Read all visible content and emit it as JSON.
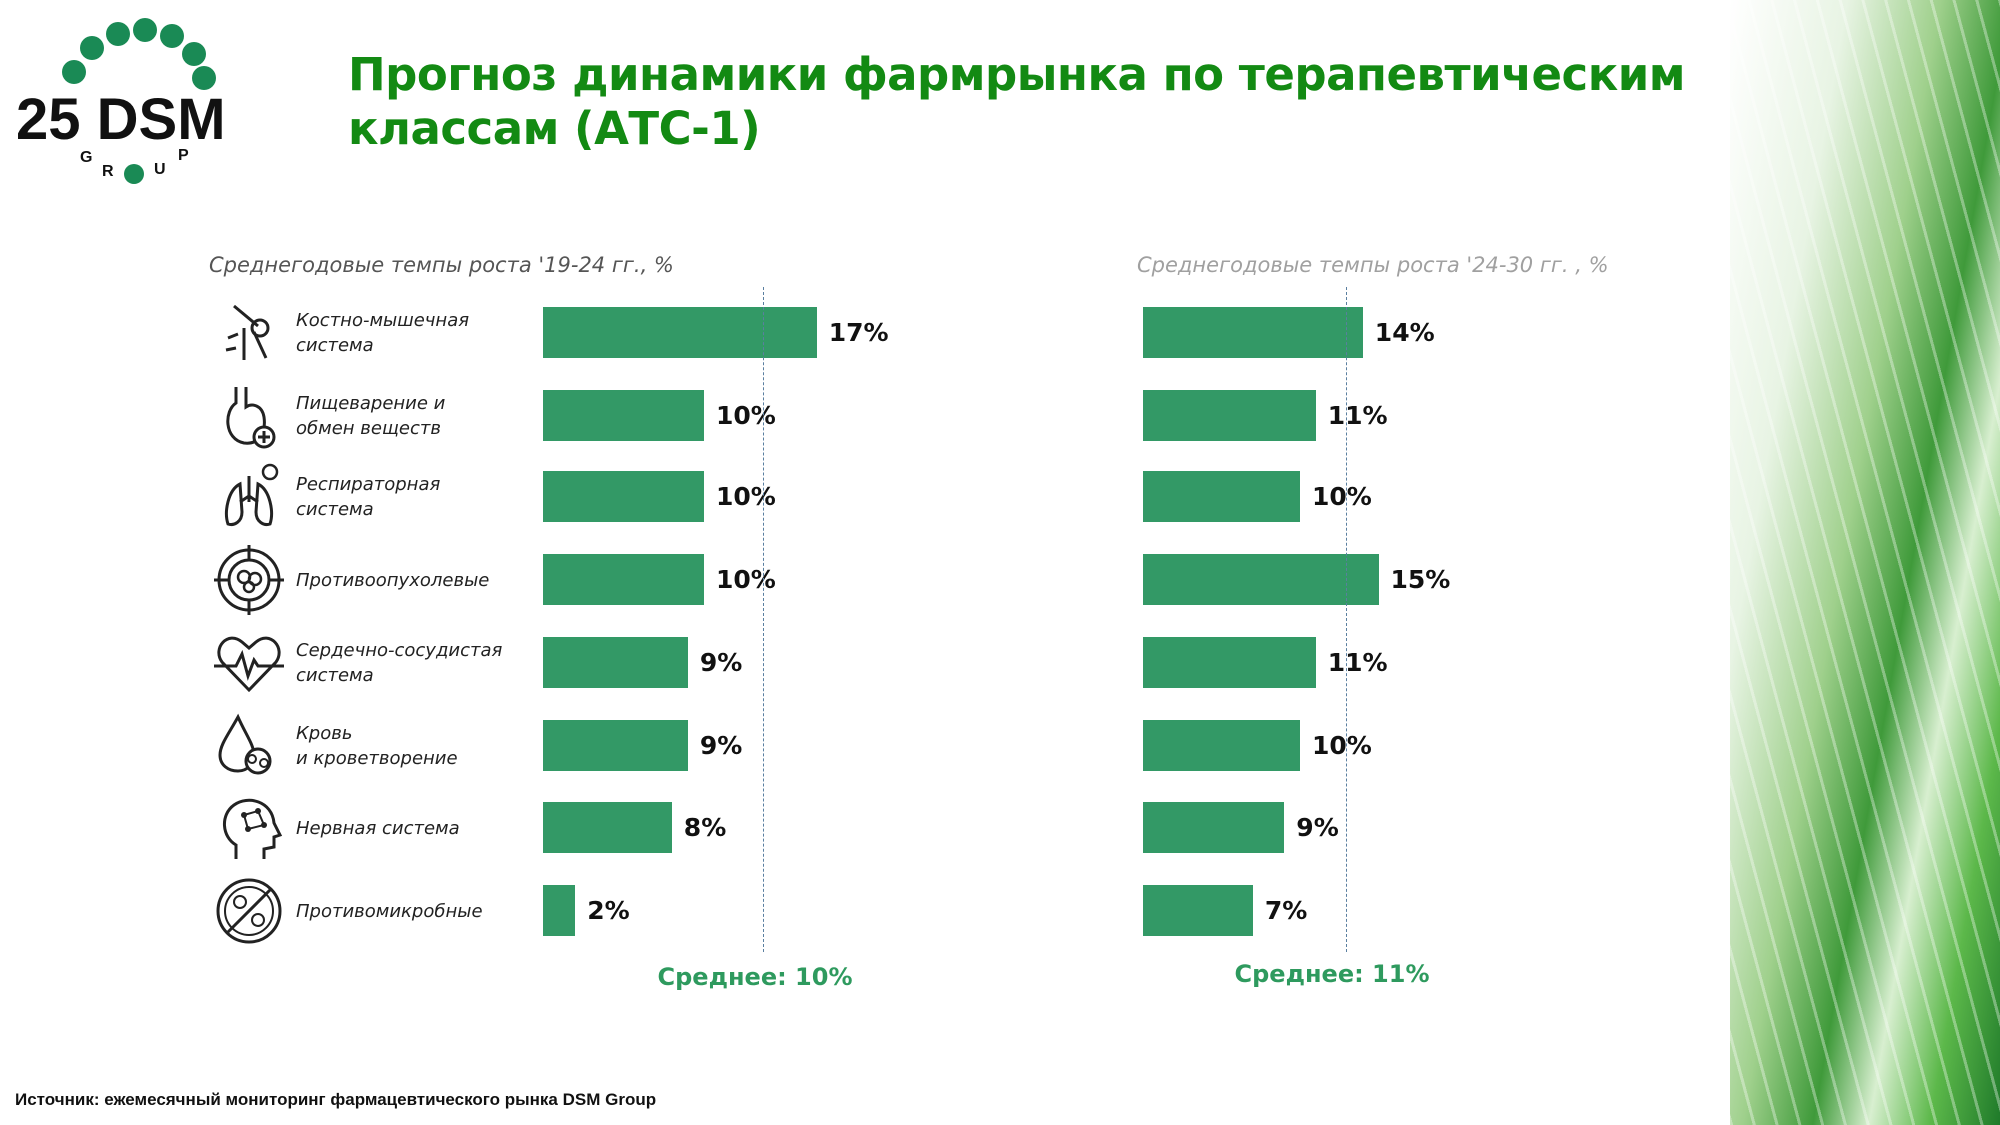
{
  "header": {
    "title_line1": "Прогноз динамики фармрынка по терапевтическим",
    "title_line2": "классам (АТС-1)"
  },
  "logo": {
    "text": "25 DSM",
    "subtext": "GROUP"
  },
  "colors": {
    "bar": "#339966",
    "title": "#138a13",
    "average": "#2e9a5e"
  },
  "chart_data": [
    {
      "type": "bar",
      "orientation": "horizontal",
      "title": "Среднегодовые темпы роста '19-24 гг., %",
      "categories": [
        "Костно-мышечная система",
        "Пищеварение и обмен веществ",
        "Респираторная система",
        "Противоопухолевые",
        "Сердечно-сосудистая система",
        "Кровь и кроветворение",
        "Нервная система",
        "Противомикробные"
      ],
      "values": [
        17,
        10,
        10,
        10,
        9,
        9,
        8,
        2
      ],
      "labels": [
        "17%",
        "10%",
        "10%",
        "10%",
        "9%",
        "9%",
        "8%",
        "2%"
      ],
      "average": 10,
      "average_label": "Среднее: 10%"
    },
    {
      "type": "bar",
      "orientation": "horizontal",
      "title": "Среднегодовые темпы роста '24-30 гг. , %",
      "categories": [
        "Костно-мышечная система",
        "Пищеварение и обмен веществ",
        "Респираторная система",
        "Противоопухолевые",
        "Сердечно-сосудистая система",
        "Кровь и кроветворение",
        "Нервная система",
        "Противомикробные"
      ],
      "values": [
        14,
        11,
        10,
        15,
        11,
        10,
        9,
        7
      ],
      "labels": [
        "14%",
        "11%",
        "10%",
        "15%",
        "11%",
        "10%",
        "9%",
        "7%"
      ],
      "average": 11,
      "average_label": "Среднее: 11%"
    }
  ],
  "rows": [
    {
      "line1": "Костно-мышечная",
      "line2": "система",
      "icon": "joint-bone-icon"
    },
    {
      "line1": "Пищеварение и",
      "line2": "обмен веществ",
      "icon": "stomach-icon"
    },
    {
      "line1": "Респираторная",
      "line2": "система",
      "icon": "lungs-icon"
    },
    {
      "line1": "Противоопухолевые",
      "line2": "",
      "icon": "tumor-cells-icon"
    },
    {
      "line1": "Сердечно-сосудистая",
      "line2": "система",
      "icon": "heart-pulse-icon"
    },
    {
      "line1": "Кровь",
      "line2": "и кроветворение",
      "icon": "blood-drop-icon"
    },
    {
      "line1": "Нервная система",
      "line2": "",
      "icon": "brain-head-icon"
    },
    {
      "line1": "Противомикробные",
      "line2": "",
      "icon": "no-microbes-icon"
    }
  ],
  "footer": {
    "source": "Источник: ежемесячный мониторинг фармацевтического рынка DSM Group"
  }
}
